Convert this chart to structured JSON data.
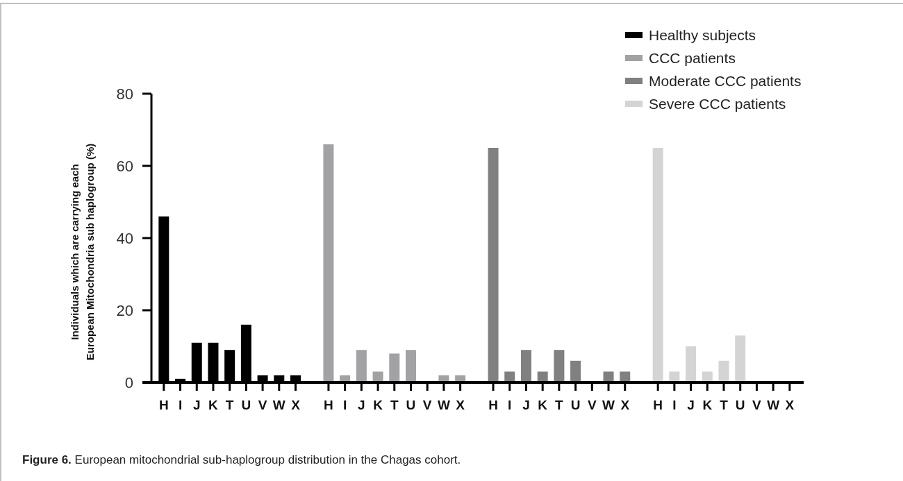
{
  "chart_data": {
    "type": "bar",
    "ylabel": "Individuals which are carrying each European Mitochondria sub haplogroup (%)",
    "annotations": [
      "Figure 6. European mitochondrial sub-haplogroup distribution in the Chagas cohort."
    ],
    "categories": [
      "H",
      "I",
      "J",
      "K",
      "T",
      "U",
      "V",
      "W",
      "X",
      null,
      "H",
      "I",
      "J",
      "K",
      "T",
      "U",
      "V",
      "W",
      "X",
      null,
      "H",
      "I",
      "J",
      "K",
      "T",
      "U",
      "V",
      "W",
      "X",
      null,
      "H",
      "I",
      "J",
      "K",
      "T",
      "U",
      "V",
      "W",
      "X"
    ],
    "series": [
      {
        "name": "Healthy subjects",
        "color": "#000000",
        "values": [
          46,
          1,
          11,
          11,
          9,
          16,
          2,
          2,
          2,
          null,
          null,
          null,
          null,
          null,
          null,
          null,
          null,
          null,
          null,
          null,
          null,
          null,
          null,
          null,
          null,
          null,
          null,
          null,
          null,
          null,
          null,
          null,
          null,
          null,
          null,
          null,
          null,
          null,
          null
        ]
      },
      {
        "name": "CCC patients",
        "color": "#a2a2a5",
        "values": [
          null,
          null,
          null,
          null,
          null,
          null,
          null,
          null,
          null,
          null,
          66,
          2,
          9,
          3,
          8,
          9,
          0,
          2,
          2,
          null,
          null,
          null,
          null,
          null,
          null,
          null,
          null,
          null,
          null,
          null,
          null,
          null,
          null,
          null,
          null,
          null,
          null,
          null,
          null
        ]
      },
      {
        "name": "Moderate CCC patients",
        "color": "#808080",
        "values": [
          null,
          null,
          null,
          null,
          null,
          null,
          null,
          null,
          null,
          null,
          null,
          null,
          null,
          null,
          null,
          null,
          null,
          null,
          null,
          null,
          65,
          3,
          9,
          3,
          9,
          6,
          0,
          3,
          3,
          null,
          null,
          null,
          null,
          null,
          null,
          null,
          null,
          null,
          null
        ]
      },
      {
        "name": "Severe CCC patients",
        "color": "#d4d4d4",
        "values": [
          null,
          null,
          null,
          null,
          null,
          null,
          null,
          null,
          null,
          null,
          null,
          null,
          null,
          null,
          null,
          null,
          null,
          null,
          null,
          null,
          null,
          null,
          null,
          null,
          null,
          null,
          null,
          null,
          null,
          null,
          65,
          3,
          10,
          3,
          6,
          13,
          0,
          0,
          0
        ]
      }
    ],
    "ylim": [
      0,
      80
    ],
    "yticks": [
      0,
      20,
      40,
      60,
      80
    ],
    "legend": "top right"
  }
}
